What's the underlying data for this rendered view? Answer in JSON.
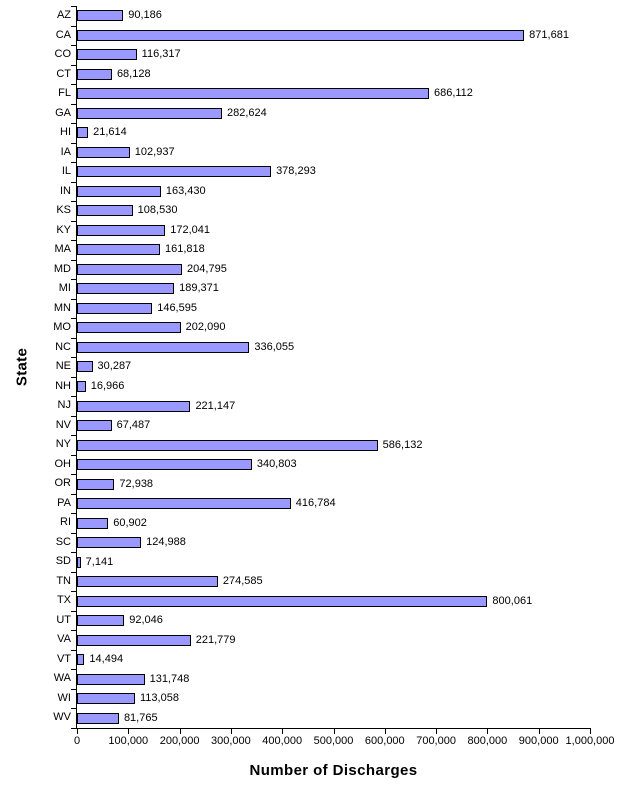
{
  "chart_data": {
    "type": "bar",
    "orientation": "horizontal",
    "title": "",
    "xlabel": "Number of Discharges",
    "ylabel": "State",
    "xlim": [
      0,
      1000000
    ],
    "x_tick_interval": 100000,
    "x_tick_labels": [
      "0",
      "100,000",
      "200,000",
      "300,000",
      "400,000",
      "500,000",
      "600,000",
      "700,000",
      "800,000",
      "900,000",
      "1,000,000"
    ],
    "grid": false,
    "legend": false,
    "categories": [
      "AZ",
      "CA",
      "CO",
      "CT",
      "FL",
      "GA",
      "HI",
      "IA",
      "IL",
      "IN",
      "KS",
      "KY",
      "MA",
      "MD",
      "MI",
      "MN",
      "MO",
      "NC",
      "NE",
      "NH",
      "NJ",
      "NV",
      "NY",
      "OH",
      "OR",
      "PA",
      "RI",
      "SC",
      "SD",
      "TN",
      "TX",
      "UT",
      "VA",
      "VT",
      "WA",
      "WI",
      "WV"
    ],
    "values": [
      90186,
      871681,
      116317,
      68128,
      686112,
      282624,
      21614,
      102937,
      378293,
      163430,
      108530,
      172041,
      161818,
      204795,
      189371,
      146595,
      202090,
      336055,
      30287,
      16966,
      221147,
      67487,
      586132,
      340803,
      72938,
      416784,
      60902,
      124988,
      7141,
      274585,
      800061,
      92046,
      221779,
      14494,
      131748,
      113058,
      81765
    ],
    "value_labels": [
      "90,186",
      "871,681",
      "116,317",
      "68,128",
      "686,112",
      "282,624",
      "21,614",
      "102,937",
      "378,293",
      "163,430",
      "108,530",
      "172,041",
      "161,818",
      "204,795",
      "189,371",
      "146,595",
      "202,090",
      "336,055",
      "30,287",
      "16,966",
      "221,147",
      "67,487",
      "586,132",
      "340,803",
      "72,938",
      "416,784",
      "60,902",
      "124,988",
      "7,141",
      "274,585",
      "800,061",
      "92,046",
      "221,779",
      "14,494",
      "131,748",
      "113,058",
      "81,765"
    ],
    "colors": {
      "bar_fill": "#9999FF",
      "bar_border": "#000000",
      "axis": "#000000",
      "text": "#000000",
      "background": "#FFFFFF"
    }
  }
}
